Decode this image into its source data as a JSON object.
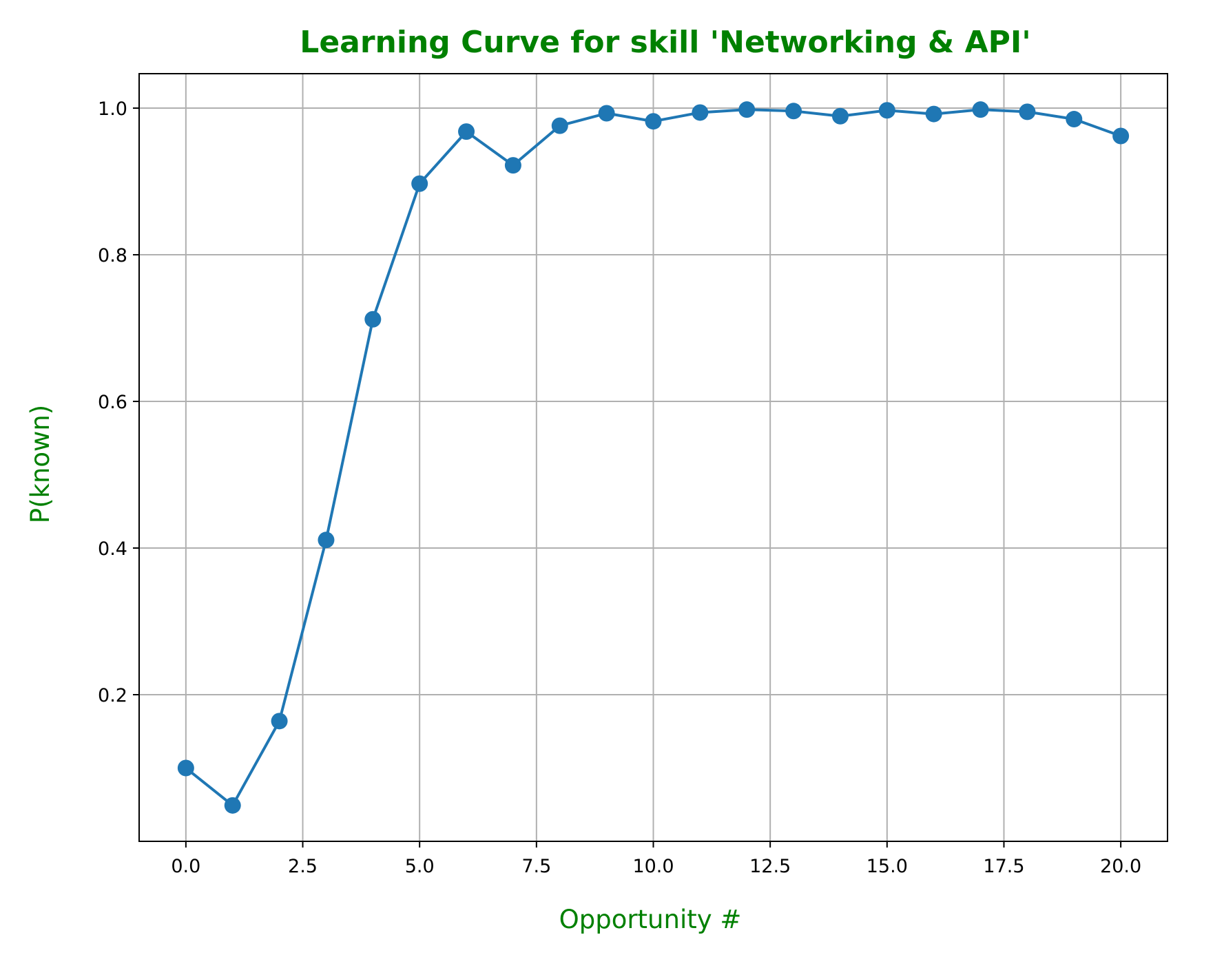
{
  "colors": {
    "accent": "#008000",
    "series": "#1f77b4",
    "grid": "#b0b0b0",
    "axis": "#000000"
  },
  "chart_data": {
    "type": "line",
    "title": "Learning Curve for skill 'Networking & API'",
    "xlabel": "Opportunity #",
    "ylabel": "P(known)",
    "xlim": [
      -1.0,
      21.0
    ],
    "ylim": [
      0.0,
      1.047
    ],
    "xticks": [
      0.0,
      2.5,
      5.0,
      7.5,
      10.0,
      12.5,
      15.0,
      17.5,
      20.0
    ],
    "xtick_labels": [
      "0.0",
      "2.5",
      "5.0",
      "7.5",
      "10.0",
      "12.5",
      "15.0",
      "17.5",
      "20.0"
    ],
    "yticks": [
      0.2,
      0.4,
      0.6,
      0.8,
      1.0
    ],
    "ytick_labels": [
      "0.2",
      "0.4",
      "0.6",
      "0.8",
      "1.0"
    ],
    "grid": true,
    "marker": "circle",
    "x": [
      0,
      1,
      2,
      3,
      4,
      5,
      6,
      7,
      8,
      9,
      10,
      11,
      12,
      13,
      14,
      15,
      16,
      17,
      18,
      19,
      20
    ],
    "y": [
      0.1,
      0.049,
      0.164,
      0.411,
      0.712,
      0.897,
      0.968,
      0.922,
      0.976,
      0.993,
      0.982,
      0.994,
      0.998,
      0.996,
      0.989,
      0.997,
      0.992,
      0.998,
      0.995,
      0.985,
      0.962
    ]
  }
}
